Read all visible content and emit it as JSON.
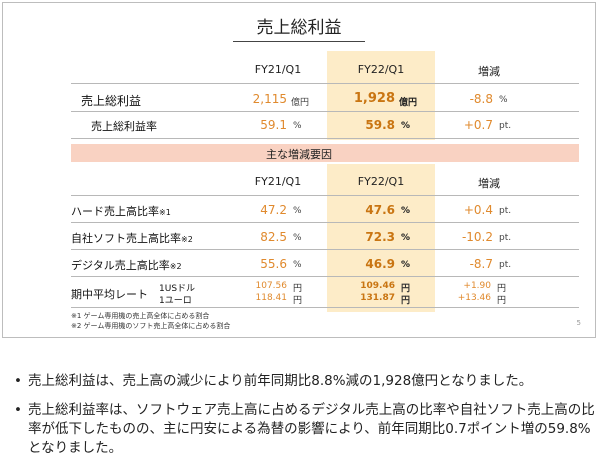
{
  "slide": {
    "title": "売上総利益",
    "page_number": "5",
    "top_table": {
      "headers": {
        "prev": "FY21/Q1",
        "curr": "FY22/Q1",
        "change": "増減"
      },
      "rows": [
        {
          "label": "売上総利益",
          "prev": "2,115",
          "prev_unit": "億円",
          "curr": "1,928",
          "curr_unit": "億円",
          "change": "-8.8",
          "change_unit": "%"
        },
        {
          "label": "売上総利益率",
          "prev": "59.1",
          "prev_unit": "%",
          "curr": "59.8",
          "curr_unit": "%",
          "change": "+0.7",
          "change_unit": "pt."
        }
      ]
    },
    "factors_title": "主な増減要因",
    "factors_table": {
      "headers": {
        "prev": "FY21/Q1",
        "curr": "FY22/Q1",
        "change": "増減"
      },
      "rows": [
        {
          "label": "ハード売上高比率",
          "mark": "※1",
          "prev": "47.2",
          "prev_unit": "%",
          "curr": "47.6",
          "curr_unit": "%",
          "change": "+0.4",
          "change_unit": "pt."
        },
        {
          "label": "自社ソフト売上高比率",
          "mark": "※2",
          "prev": "82.5",
          "prev_unit": "%",
          "curr": "72.3",
          "curr_unit": "%",
          "change": "-10.2",
          "change_unit": "pt."
        },
        {
          "label": "デジタル売上高比率",
          "mark": "※2",
          "prev": "55.6",
          "prev_unit": "%",
          "curr": "46.9",
          "curr_unit": "%",
          "change": "-8.7",
          "change_unit": "pt."
        }
      ],
      "fx": {
        "label": "期中平均レート",
        "rows": [
          {
            "currency": "1USドル",
            "prev": "107.56",
            "curr": "109.46",
            "change": "+1.90",
            "unit": "円"
          },
          {
            "currency": "1ユーロ",
            "prev": "118.41",
            "curr": "131.87",
            "change": "+13.46",
            "unit": "円"
          }
        ]
      }
    },
    "notes": [
      "※1 ゲーム専用機の売上高全体に占める割合",
      "※2 ゲーム専用機のソフト売上高全体に占める割合"
    ]
  },
  "bullets": [
    "売上総利益は、売上高の減少により前年同期比8.8%減の1,928億円となりました。",
    "売上総利益率は、ソフトウェア売上高に占めるデジタル売上高の比率や自社ソフト売上高の比率が低下したものの、主に円安による為替の影響により、前年同期比0.7ポイント増の59.8%となりました。"
  ]
}
